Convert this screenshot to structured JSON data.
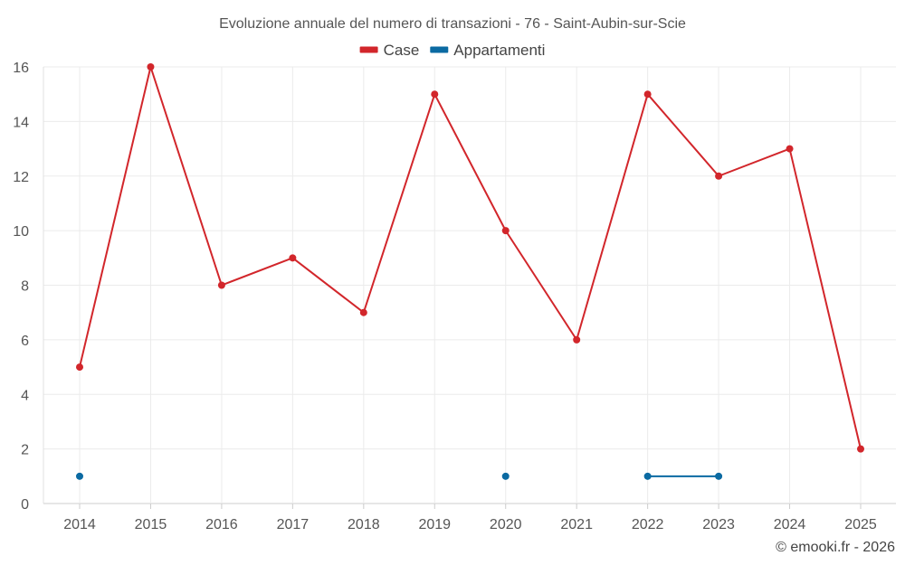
{
  "chart_data": {
    "type": "line",
    "title": "Evoluzione annuale del numero di transazioni - 76 - Saint-Aubin-sur-Scie",
    "xlabel": "",
    "ylabel": "",
    "categories": [
      "2014",
      "2015",
      "2016",
      "2017",
      "2018",
      "2019",
      "2020",
      "2021",
      "2022",
      "2023",
      "2024",
      "2025"
    ],
    "ylim": [
      0,
      16
    ],
    "yticks": [
      0,
      2,
      4,
      6,
      8,
      10,
      12,
      14,
      16
    ],
    "grid": true,
    "legend_position": "top-center",
    "series": [
      {
        "name": "Case",
        "color": "#d2262b",
        "values": [
          5,
          16,
          8,
          9,
          7,
          15,
          10,
          6,
          15,
          12,
          13,
          2
        ]
      },
      {
        "name": "Appartamenti",
        "color": "#0b6aa2",
        "values": [
          1,
          null,
          null,
          null,
          null,
          null,
          1,
          null,
          1,
          1,
          null,
          null
        ]
      }
    ]
  },
  "credit": "© emooki.fr - 2026"
}
